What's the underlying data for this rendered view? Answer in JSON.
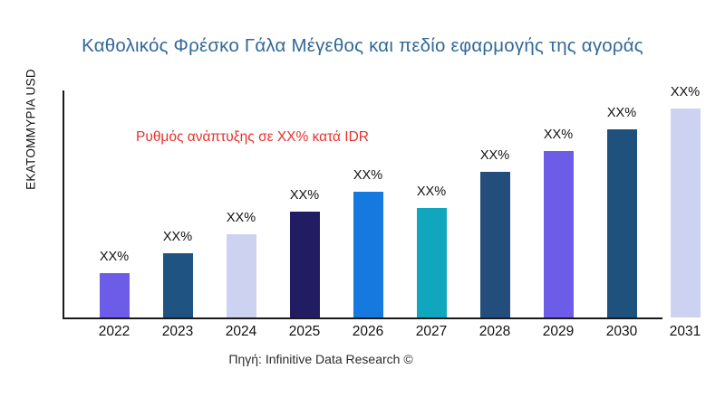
{
  "title": "Καθολικός Φρέσκο Γάλα Μέγεθος και πεδίο εφαρμογής της αγοράς",
  "source": "Πηγή: Infinitive Data Research ©",
  "colors": {
    "title_text": "#31689A",
    "annotation_text": "#E5312B",
    "axis_line": "#1a1a1a",
    "label_text": "#111111"
  },
  "chart_data": {
    "type": "bar",
    "title": "Καθολικός Φρέσκο Γάλα Μέγεθος και πεδίο εφαρμογής της αγοράς",
    "xlabel": "",
    "ylabel": "ΕΚΑΤΟΜΜΥΡΙΑ USD",
    "annotation": "Ρυθμός ανάπτυξης σε XX% κατά IDR",
    "categories": [
      "2022",
      "2023",
      "2024",
      "2025",
      "2026",
      "2027",
      "2028",
      "2029",
      "2030",
      "2031"
    ],
    "value_labels": [
      "XX%",
      "XX%",
      "XX%",
      "XX%",
      "XX%",
      "XX%",
      "XX%",
      "XX%",
      "XX%",
      "XX%"
    ],
    "values_relative": [
      49,
      71,
      92,
      117,
      139,
      121,
      161,
      184,
      208,
      231
    ],
    "bar_colors": [
      "#6C5CE7",
      "#1F5382",
      "#CDD2F0",
      "#221C63",
      "#1679E0",
      "#10A6BE",
      "#234E7C",
      "#6C5CE7",
      "#1E527D",
      "#CDD2F0"
    ],
    "grid": false,
    "legend": false,
    "note": "values shown as XX% placeholders; values_relative are bar heights in px read from the figure"
  }
}
